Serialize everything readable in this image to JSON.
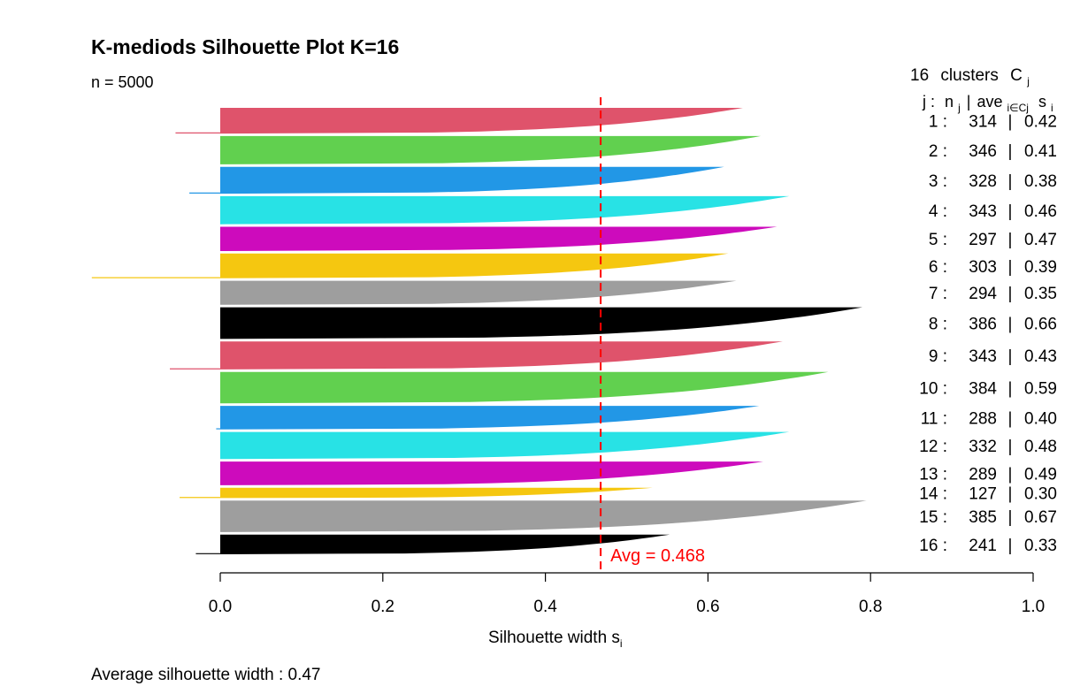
{
  "chart_data": {
    "type": "bar",
    "title": "K-mediods Silhouette Plot K=16",
    "subtitle": "n = 5000",
    "xlabel": "Silhouette width s",
    "xlabel_sub": "i",
    "xlim": [
      0,
      1
    ],
    "x_ticks": [
      "0.0",
      "0.2",
      "0.4",
      "0.6",
      "0.8",
      "1.0"
    ],
    "avg_line": {
      "value": 0.468,
      "label": "Avg = 0.468",
      "color": "#ff0000"
    },
    "legend_header": {
      "count": "16",
      "label": "clusters",
      "c": "C",
      "c_sub": "j",
      "col_j": "j :",
      "col_n": "n",
      "col_n_sub": "j",
      "sep": "|",
      "col_ave": "ave",
      "col_ave_sub": "i∈Cj",
      "col_s": "s",
      "col_s_sub": "i"
    },
    "footer": "Average silhouette width :  0.47",
    "clusters": [
      {
        "j": "1 :",
        "n": "314",
        "ave": "0.42",
        "max": 0.643,
        "min": -0.055,
        "color": "#DF536B"
      },
      {
        "j": "2 :",
        "n": "346",
        "ave": "0.41",
        "max": 0.665,
        "min": 0,
        "color": "#61D04F"
      },
      {
        "j": "3 :",
        "n": "328",
        "ave": "0.38",
        "max": 0.62,
        "min": -0.038,
        "color": "#2297E6"
      },
      {
        "j": "4 :",
        "n": "343",
        "ave": "0.46",
        "max": 0.7,
        "min": 0,
        "color": "#28E2E5"
      },
      {
        "j": "5 :",
        "n": "297",
        "ave": "0.47",
        "max": 0.685,
        "min": 0,
        "color": "#CD0BBC"
      },
      {
        "j": "6 :",
        "n": "303",
        "ave": "0.39",
        "max": 0.625,
        "min": -0.158,
        "color": "#F5C710"
      },
      {
        "j": "7 :",
        "n": "294",
        "ave": "0.35",
        "max": 0.635,
        "min": 0,
        "color": "#9E9E9E"
      },
      {
        "j": "8 :",
        "n": "386",
        "ave": "0.66",
        "max": 0.79,
        "min": 0,
        "color": "#000000"
      },
      {
        "j": "9 :",
        "n": "343",
        "ave": "0.43",
        "max": 0.692,
        "min": -0.062,
        "color": "#DF536B"
      },
      {
        "j": "10 :",
        "n": "384",
        "ave": "0.59",
        "max": 0.748,
        "min": 0,
        "color": "#61D04F"
      },
      {
        "j": "11 :",
        "n": "288",
        "ave": "0.40",
        "max": 0.663,
        "min": -0.005,
        "color": "#2297E6"
      },
      {
        "j": "12 :",
        "n": "332",
        "ave": "0.48",
        "max": 0.7,
        "min": 0,
        "color": "#28E2E5"
      },
      {
        "j": "13 :",
        "n": "289",
        "ave": "0.49",
        "max": 0.668,
        "min": 0,
        "color": "#CD0BBC"
      },
      {
        "j": "14 :",
        "n": "127",
        "ave": "0.30",
        "max": 0.532,
        "min": -0.05,
        "color": "#F5C710"
      },
      {
        "j": "15 :",
        "n": "385",
        "ave": "0.67",
        "max": 0.795,
        "min": 0,
        "color": "#9E9E9E"
      },
      {
        "j": "16 :",
        "n": "241",
        "ave": "0.33",
        "max": 0.553,
        "min": -0.03,
        "color": "#000000"
      }
    ]
  }
}
